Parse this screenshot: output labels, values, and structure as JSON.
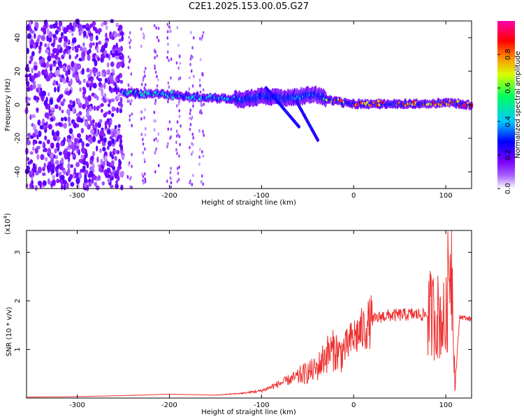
{
  "title": "C2E1.2025.153.00.05.G27",
  "chart_data": [
    {
      "type": "heatmap",
      "xlabel": "Height of straight line (km)",
      "ylabel": "Frequency (Hz)",
      "xlim": [
        -355,
        128
      ],
      "ylim": [
        -50,
        50
      ],
      "xticks": [
        -300,
        -200,
        -100,
        0,
        100
      ],
      "xtick_labels": [
        "-300",
        "-200",
        "-100",
        "0",
        "100"
      ],
      "yticks": [
        -40,
        -20,
        0,
        20,
        40
      ],
      "ytick_labels": [
        "-40",
        "-20",
        "0",
        "20",
        "40"
      ],
      "colorbar": {
        "label": "Normalized spectral amplitude",
        "range": [
          0,
          1
        ],
        "ticks": [
          0,
          0.2,
          0.4,
          0.6,
          0.8
        ],
        "tick_labels": [
          "0.0",
          "0.2",
          "0.4",
          "0.6",
          "0.8"
        ],
        "colormap": [
          "#ffffff",
          "#7a00ff",
          "#0000ff",
          "#00c8ff",
          "#00ff80",
          "#ffff00",
          "#ff8000",
          "#ff0000",
          "#ff00aa"
        ]
      },
      "ridge": {
        "x": [
          -250,
          -200,
          -150,
          -120,
          -100,
          -80,
          -60,
          -40,
          -20,
          0,
          50,
          100,
          128
        ],
        "freq": [
          7,
          6,
          4,
          3,
          5,
          4,
          5,
          6,
          2,
          0.5,
          0.5,
          1,
          0
        ],
        "amplitude": [
          0.5,
          0.45,
          0.45,
          0.4,
          0.35,
          0.35,
          0.35,
          0.35,
          0.8,
          0.85,
          0.85,
          0.85,
          0.9
        ]
      }
    },
    {
      "type": "line",
      "xlabel": "Height of straight line (km)",
      "ylabel": "SNR (10 * v/v)",
      "exponent_label": "(x10",
      "exponent_power": "4",
      "exponent_close": ")",
      "xlim": [
        -355,
        128
      ],
      "ylim": [
        0,
        3.45
      ],
      "xticks": [
        -300,
        -200,
        -100,
        0,
        100
      ],
      "xtick_labels": [
        "-300",
        "-200",
        "-100",
        "0",
        "100"
      ],
      "yticks": [
        1,
        2,
        3
      ],
      "ytick_labels": [
        "1",
        "2",
        "3"
      ],
      "color": "#ee3030",
      "series": [
        {
          "x": [
            -355,
            -300,
            -250,
            -200,
            -150,
            -120,
            -100,
            -80,
            -60,
            -40,
            -30,
            -20,
            -15,
            -10,
            0,
            10,
            20,
            30,
            40,
            60,
            80,
            90,
            95,
            100,
            103,
            106,
            108,
            110,
            115,
            128
          ],
          "y": [
            0.02,
            0.03,
            0.05,
            0.08,
            0.06,
            0.1,
            0.15,
            0.3,
            0.45,
            0.6,
            0.9,
            1.0,
            0.9,
            1.0,
            1.25,
            1.4,
            1.6,
            1.68,
            1.7,
            1.72,
            1.72,
            1.7,
            1.65,
            1.5,
            2.5,
            3.3,
            1.8,
            0.2,
            1.68,
            1.62
          ]
        }
      ]
    }
  ]
}
